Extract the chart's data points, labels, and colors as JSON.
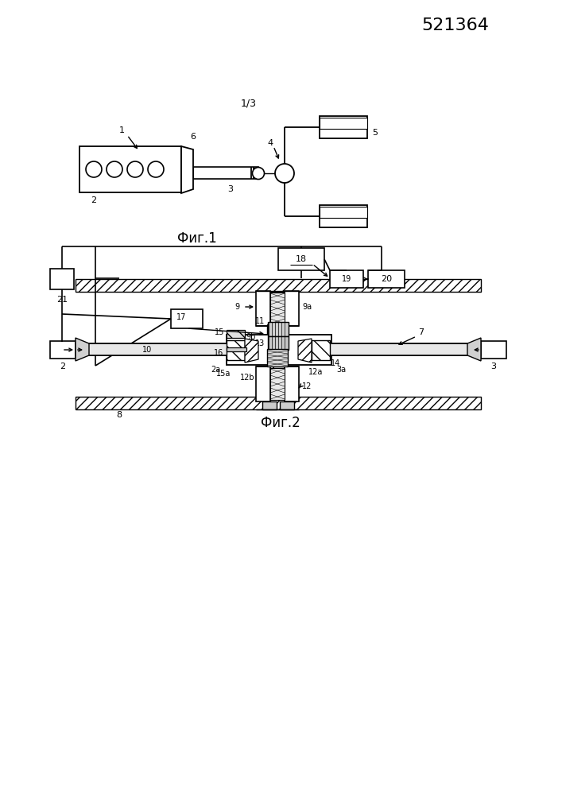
{
  "page_number": "521364",
  "fig1_label": "Фиг.1",
  "fig2_label": "Фиг.2",
  "sheet_label": "1/3",
  "bg": "#ffffff"
}
